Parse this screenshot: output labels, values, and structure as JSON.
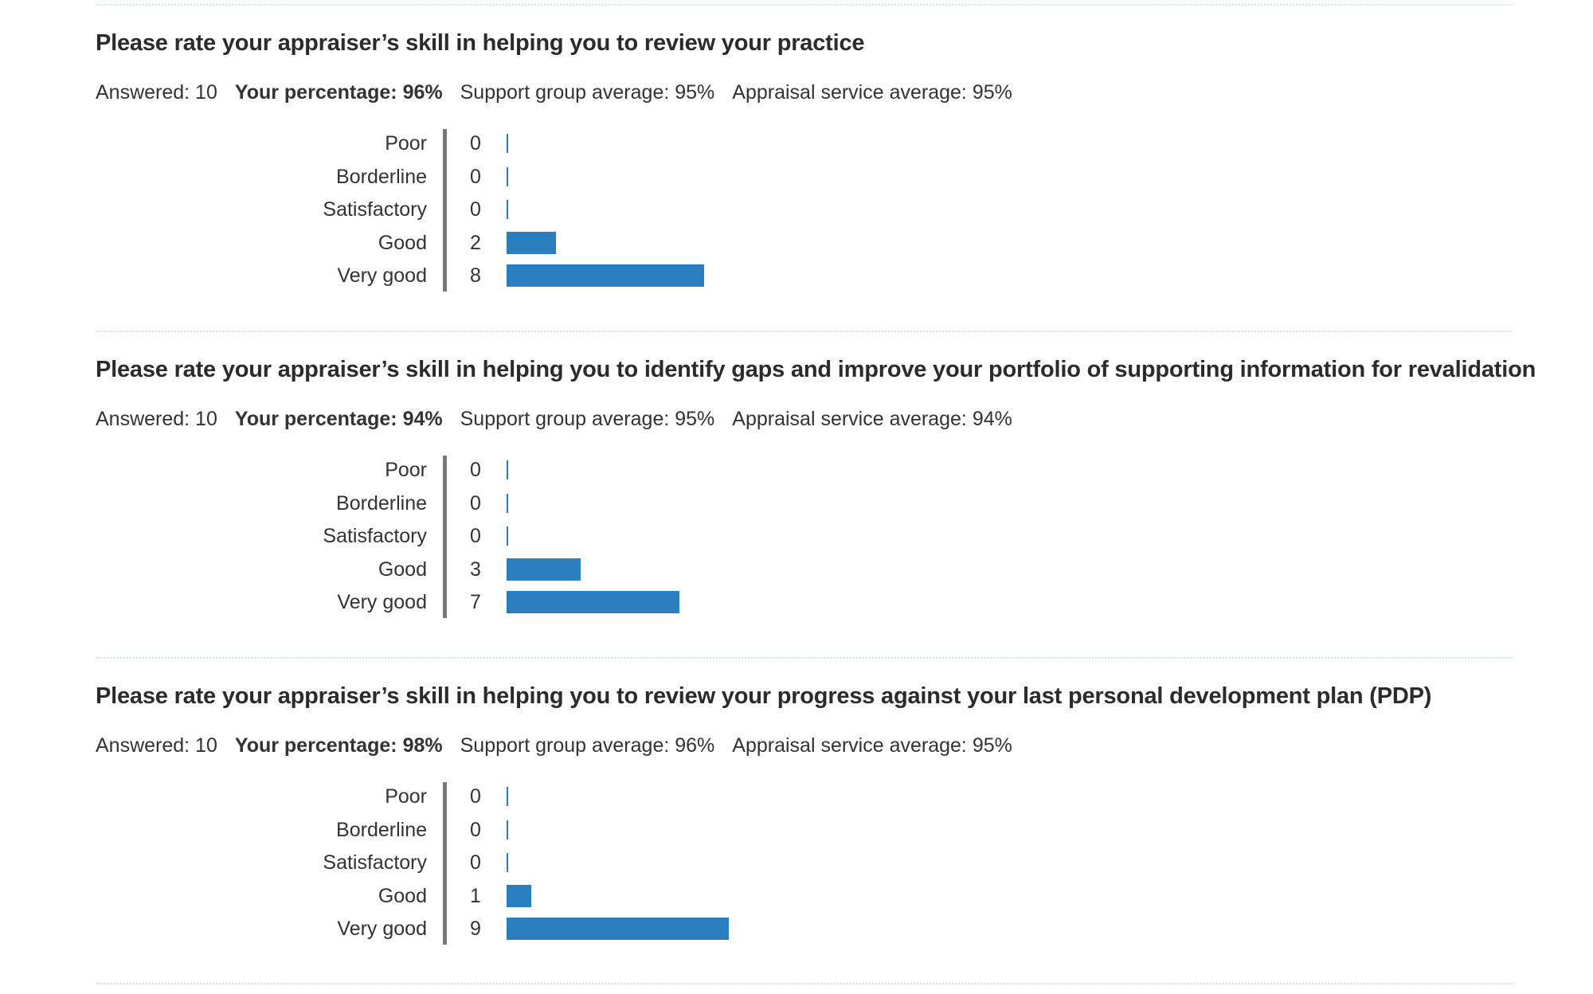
{
  "questions": [
    {
      "title": "Please rate your appraiser’s skill in helping you to review your practice",
      "answered": "Answered: 10",
      "your_pct": "Your percentage: 96%",
      "support_avg": "Support group average: 95%",
      "service_avg": "Appraisal service average: 95%"
    },
    {
      "title": "Please rate your appraiser’s skill in helping you to identify gaps and improve your portfolio of supporting information for revalidation",
      "answered": "Answered: 10",
      "your_pct": "Your percentage: 94%",
      "support_avg": "Support group average: 95%",
      "service_avg": "Appraisal service average: 94%"
    },
    {
      "title": "Please rate your appraiser’s skill in helping you to review your progress against your last personal development plan (PDP)",
      "answered": "Answered: 10",
      "your_pct": "Your percentage: 98%",
      "support_avg": "Support group average: 96%",
      "service_avg": "Appraisal service average: 95%"
    }
  ],
  "colors": {
    "bar": "#2a7ebd",
    "axis": "#777777",
    "divider": "#cfe4f2"
  },
  "chart_data": [
    {
      "type": "bar",
      "orientation": "horizontal",
      "categories": [
        "Poor",
        "Borderline",
        "Satisfactory",
        "Good",
        "Very good"
      ],
      "values": [
        0,
        0,
        0,
        2,
        8
      ]
    },
    {
      "type": "bar",
      "orientation": "horizontal",
      "categories": [
        "Poor",
        "Borderline",
        "Satisfactory",
        "Good",
        "Very good"
      ],
      "values": [
        0,
        0,
        0,
        3,
        7
      ]
    },
    {
      "type": "bar",
      "orientation": "horizontal",
      "categories": [
        "Poor",
        "Borderline",
        "Satisfactory",
        "Good",
        "Very good"
      ],
      "values": [
        0,
        0,
        0,
        1,
        9
      ]
    }
  ]
}
